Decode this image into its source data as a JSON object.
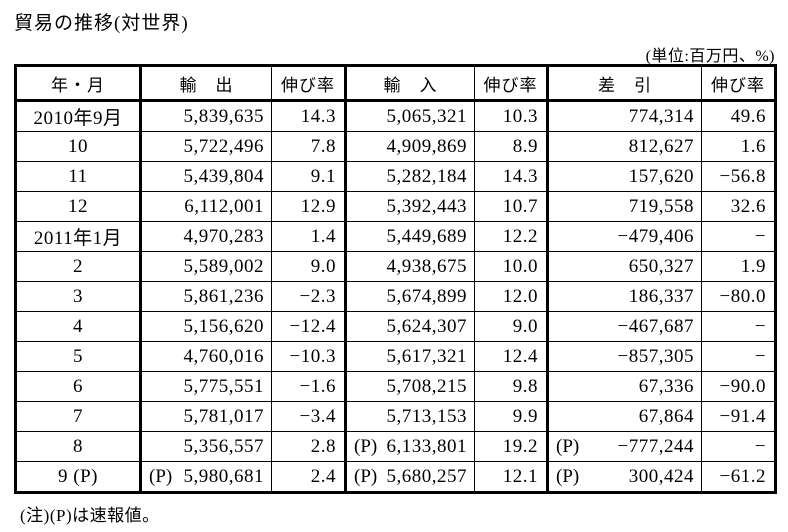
{
  "page": {
    "title": "貿易の推移(対世界)",
    "unit_note": "(単位:百万円、%)",
    "footnote": "(注)(P)は速報値。"
  },
  "table": {
    "columns": [
      "年・月",
      "輸　出",
      "伸び率",
      "輸　入",
      "伸び率",
      "差　引",
      "伸び率"
    ],
    "rows": [
      {
        "period": "2010年9月",
        "export_p": "",
        "export": "5,839,635",
        "export_growth": "14.3",
        "import_p": "",
        "import": "5,065,321",
        "import_growth": "10.3",
        "balance_p": "",
        "balance": "774,314",
        "balance_growth": "49.6"
      },
      {
        "period": "10",
        "export_p": "",
        "export": "5,722,496",
        "export_growth": "7.8",
        "import_p": "",
        "import": "4,909,869",
        "import_growth": "8.9",
        "balance_p": "",
        "balance": "812,627",
        "balance_growth": "1.6"
      },
      {
        "period": "11",
        "export_p": "",
        "export": "5,439,804",
        "export_growth": "9.1",
        "import_p": "",
        "import": "5,282,184",
        "import_growth": "14.3",
        "balance_p": "",
        "balance": "157,620",
        "balance_growth": "−56.8"
      },
      {
        "period": "12",
        "export_p": "",
        "export": "6,112,001",
        "export_growth": "12.9",
        "import_p": "",
        "import": "5,392,443",
        "import_growth": "10.7",
        "balance_p": "",
        "balance": "719,558",
        "balance_growth": "32.6"
      },
      {
        "period": "2011年1月",
        "export_p": "",
        "export": "4,970,283",
        "export_growth": "1.4",
        "import_p": "",
        "import": "5,449,689",
        "import_growth": "12.2",
        "balance_p": "",
        "balance": "−479,406",
        "balance_growth": "−"
      },
      {
        "period": "2",
        "export_p": "",
        "export": "5,589,002",
        "export_growth": "9.0",
        "import_p": "",
        "import": "4,938,675",
        "import_growth": "10.0",
        "balance_p": "",
        "balance": "650,327",
        "balance_growth": "1.9"
      },
      {
        "period": "3",
        "export_p": "",
        "export": "5,861,236",
        "export_growth": "−2.3",
        "import_p": "",
        "import": "5,674,899",
        "import_growth": "12.0",
        "balance_p": "",
        "balance": "186,337",
        "balance_growth": "−80.0"
      },
      {
        "period": "4",
        "export_p": "",
        "export": "5,156,620",
        "export_growth": "−12.4",
        "import_p": "",
        "import": "5,624,307",
        "import_growth": "9.0",
        "balance_p": "",
        "balance": "−467,687",
        "balance_growth": "−"
      },
      {
        "period": "5",
        "export_p": "",
        "export": "4,760,016",
        "export_growth": "−10.3",
        "import_p": "",
        "import": "5,617,321",
        "import_growth": "12.4",
        "balance_p": "",
        "balance": "−857,305",
        "balance_growth": "−"
      },
      {
        "period": "6",
        "export_p": "",
        "export": "5,775,551",
        "export_growth": "−1.6",
        "import_p": "",
        "import": "5,708,215",
        "import_growth": "9.8",
        "balance_p": "",
        "balance": "67,336",
        "balance_growth": "−90.0"
      },
      {
        "period": "7",
        "export_p": "",
        "export": "5,781,017",
        "export_growth": "−3.4",
        "import_p": "",
        "import": "5,713,153",
        "import_growth": "9.9",
        "balance_p": "",
        "balance": "67,864",
        "balance_growth": "−91.4"
      },
      {
        "period": "8",
        "export_p": "",
        "export": "5,356,557",
        "export_growth": "2.8",
        "import_p": "(P)",
        "import": "6,133,801",
        "import_growth": "19.2",
        "balance_p": "(P)",
        "balance": "−777,244",
        "balance_growth": "−"
      },
      {
        "period": "9 (P)",
        "export_p": "(P)",
        "export": "5,980,681",
        "export_growth": "2.4",
        "import_p": "(P)",
        "import": "5,680,257",
        "import_growth": "12.1",
        "balance_p": "(P)",
        "balance": "300,424",
        "balance_growth": "−61.2"
      }
    ]
  }
}
